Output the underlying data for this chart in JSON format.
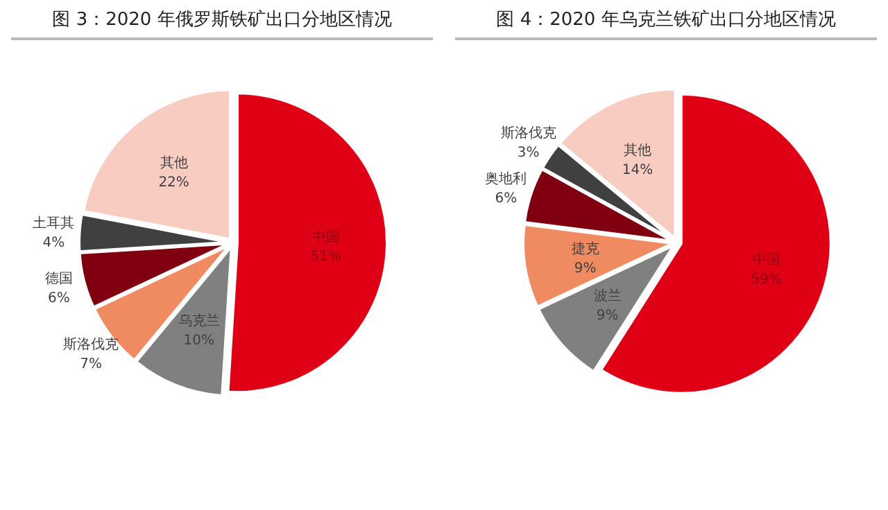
{
  "chart_data": [
    {
      "type": "pie",
      "title": "图 3：2020 年俄罗斯铁矿出口分地区情况",
      "categories": [
        "中国",
        "乌克兰",
        "斯洛伐克",
        "德国",
        "土耳其",
        "其他"
      ],
      "values": [
        51,
        10,
        7,
        6,
        4,
        22
      ],
      "colors": [
        "#e00016",
        "#808080",
        "#f08a60",
        "#800010",
        "#404040",
        "#f8ccc0"
      ],
      "value_labels": [
        "51%",
        "10%",
        "7%",
        "6%",
        "4%",
        "22%"
      ]
    },
    {
      "type": "pie",
      "title": "图 4：2020 年乌克兰铁矿出口分地区情况",
      "categories": [
        "中国",
        "波兰",
        "捷克",
        "奥地利",
        "斯洛伐克",
        "其他"
      ],
      "values": [
        59,
        9,
        9,
        6,
        3,
        14
      ],
      "colors": [
        "#e00016",
        "#808080",
        "#f08a60",
        "#800010",
        "#404040",
        "#f8ccc0"
      ],
      "value_labels": [
        "59%",
        "9%",
        "9%",
        "6%",
        "3%",
        "14%"
      ]
    }
  ]
}
